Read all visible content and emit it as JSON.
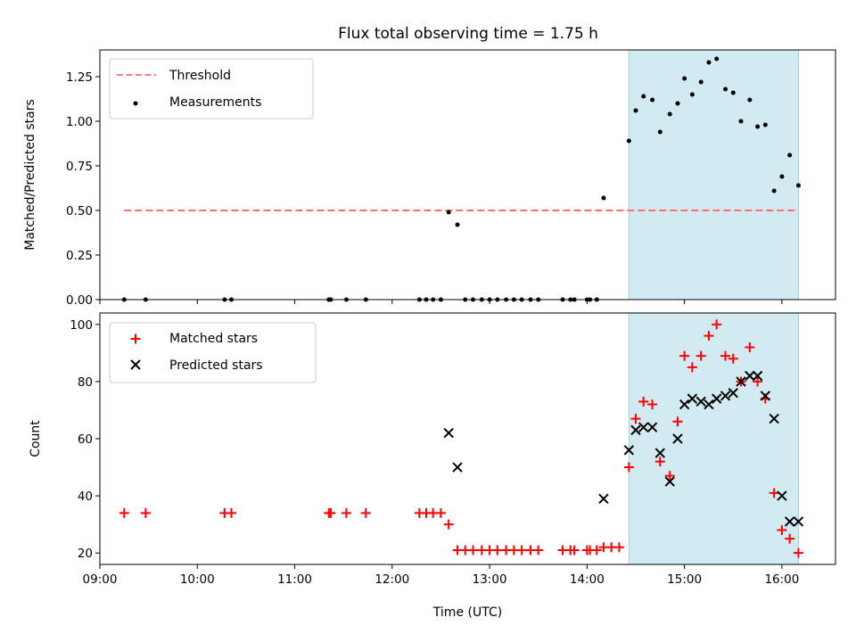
{
  "chart_data": [
    {
      "type": "scatter",
      "title": "Flux total observing time = 1.75 h",
      "xlabel": "",
      "ylabel": "Matched/Predicted stars",
      "xlim": [
        9.0,
        16.55
      ],
      "ylim": [
        0.0,
        1.4
      ],
      "yticks": [
        "0.00",
        "0.25",
        "0.50",
        "0.75",
        "1.00",
        "1.25"
      ],
      "grid": false,
      "legend_position": "top-left",
      "shaded_region": {
        "x": [
          14.43,
          16.17
        ],
        "color": "#add8e6"
      },
      "series": [
        {
          "name": "Threshold",
          "kind": "dashed-line",
          "color": "#ff6f6f",
          "x": [
            9.25,
            16.17
          ],
          "y": [
            0.5,
            0.5
          ]
        },
        {
          "name": "Measurements",
          "kind": "dots",
          "color": "#000000",
          "x": [
            9.25,
            9.47,
            10.28,
            10.35,
            11.35,
            11.37,
            11.53,
            11.73,
            12.28,
            12.35,
            12.42,
            12.5,
            12.58,
            12.67,
            12.75,
            12.83,
            12.92,
            13.0,
            13.08,
            13.17,
            13.25,
            13.33,
            13.42,
            13.5,
            13.75,
            13.83,
            13.87,
            14.0,
            14.03,
            14.1,
            14.17,
            14.43,
            14.5,
            14.58,
            14.67,
            14.75,
            14.85,
            14.93,
            15.0,
            15.08,
            15.17,
            15.25,
            15.33,
            15.42,
            15.5,
            15.58,
            15.67,
            15.75,
            15.83,
            15.92,
            16.0,
            16.08,
            16.17
          ],
          "y": [
            0.0,
            0.0,
            0.0,
            0.0,
            0.0,
            0.0,
            0.0,
            0.0,
            0.0,
            0.0,
            0.0,
            0.0,
            0.49,
            0.42,
            0.0,
            0.0,
            0.0,
            0.0,
            0.0,
            0.0,
            0.0,
            0.0,
            0.0,
            0.0,
            0.0,
            0.0,
            0.0,
            0.0,
            0.0,
            0.0,
            0.57,
            0.89,
            1.06,
            1.14,
            1.12,
            0.94,
            1.04,
            1.1,
            1.24,
            1.15,
            1.22,
            1.33,
            1.35,
            1.18,
            1.16,
            1.0,
            1.12,
            0.97,
            0.98,
            0.61,
            0.69,
            0.81,
            0.64
          ]
        }
      ]
    },
    {
      "type": "scatter",
      "title": "",
      "xlabel": "Time (UTC)",
      "ylabel": "Count",
      "xlim": [
        9.0,
        16.55
      ],
      "ylim": [
        16.0,
        104.0
      ],
      "xticks": [
        "09:00",
        "10:00",
        "11:00",
        "12:00",
        "13:00",
        "14:00",
        "15:00",
        "16:00"
      ],
      "yticks": [
        "20",
        "40",
        "60",
        "80",
        "100"
      ],
      "grid": false,
      "legend_position": "top-left",
      "shaded_region": {
        "x": [
          14.43,
          16.17
        ],
        "color": "#add8e6"
      },
      "series": [
        {
          "name": "Matched stars",
          "marker": "plus",
          "color": "#ff0000",
          "x": [
            9.25,
            9.47,
            10.28,
            10.35,
            11.35,
            11.37,
            11.53,
            11.73,
            12.28,
            12.35,
            12.42,
            12.5,
            12.58,
            12.67,
            12.75,
            12.83,
            12.92,
            13.0,
            13.08,
            13.17,
            13.25,
            13.33,
            13.42,
            13.5,
            13.75,
            13.83,
            13.87,
            14.0,
            14.03,
            14.1,
            14.17,
            14.25,
            14.33,
            14.43,
            14.5,
            14.58,
            14.67,
            14.75,
            14.85,
            14.93,
            15.0,
            15.08,
            15.17,
            15.25,
            15.33,
            15.42,
            15.5,
            15.58,
            15.67,
            15.75,
            15.83,
            15.92,
            16.0,
            16.08,
            16.17
          ],
          "y": [
            34,
            34,
            34,
            34,
            34,
            34,
            34,
            34,
            34,
            34,
            34,
            34,
            30,
            21,
            21,
            21,
            21,
            21,
            21,
            21,
            21,
            21,
            21,
            21,
            21,
            21,
            21,
            21,
            21,
            21,
            22,
            22,
            22,
            50,
            67,
            73,
            72,
            52,
            47,
            66,
            89,
            85,
            89,
            96,
            100,
            89,
            88,
            80,
            92,
            80,
            74,
            41,
            28,
            25,
            20
          ]
        },
        {
          "name": "Predicted stars",
          "marker": "x",
          "color": "#000000",
          "x": [
            12.58,
            12.67,
            14.17,
            14.43,
            14.5,
            14.58,
            14.67,
            14.75,
            14.85,
            14.93,
            15.0,
            15.08,
            15.17,
            15.25,
            15.33,
            15.42,
            15.5,
            15.58,
            15.67,
            15.75,
            15.83,
            15.92,
            16.0,
            16.08,
            16.17
          ],
          "y": [
            62,
            50,
            39,
            56,
            63,
            64,
            64,
            55,
            45,
            60,
            72,
            74,
            73,
            72,
            74,
            75,
            76,
            80,
            82,
            82,
            75,
            67,
            40,
            31,
            31
          ]
        }
      ]
    }
  ]
}
